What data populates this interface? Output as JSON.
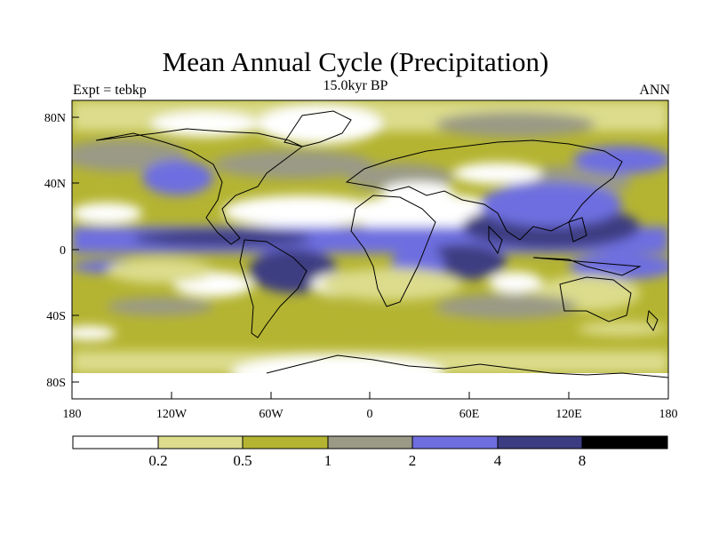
{
  "header": {
    "title": "Mean Annual Cycle (Precipitation)",
    "subtitle": "15.0kyr BP",
    "left_label": "Expt = tebkp",
    "right_label": "ANN"
  },
  "axes": {
    "lat_ticks": [
      "80N",
      "40N",
      "0",
      "40S",
      "80S"
    ],
    "lon_ticks": [
      "180",
      "120W",
      "60W",
      "0",
      "60E",
      "120E",
      "180"
    ]
  },
  "colorbar": {
    "colors": [
      "#ffffff",
      "#dcdc8c",
      "#b4b432",
      "#9a9a86",
      "#6e6ee0",
      "#3c3c82",
      "#000000"
    ],
    "labels": [
      "0.2",
      "0.5",
      "1",
      "2",
      "4",
      "8"
    ]
  }
}
